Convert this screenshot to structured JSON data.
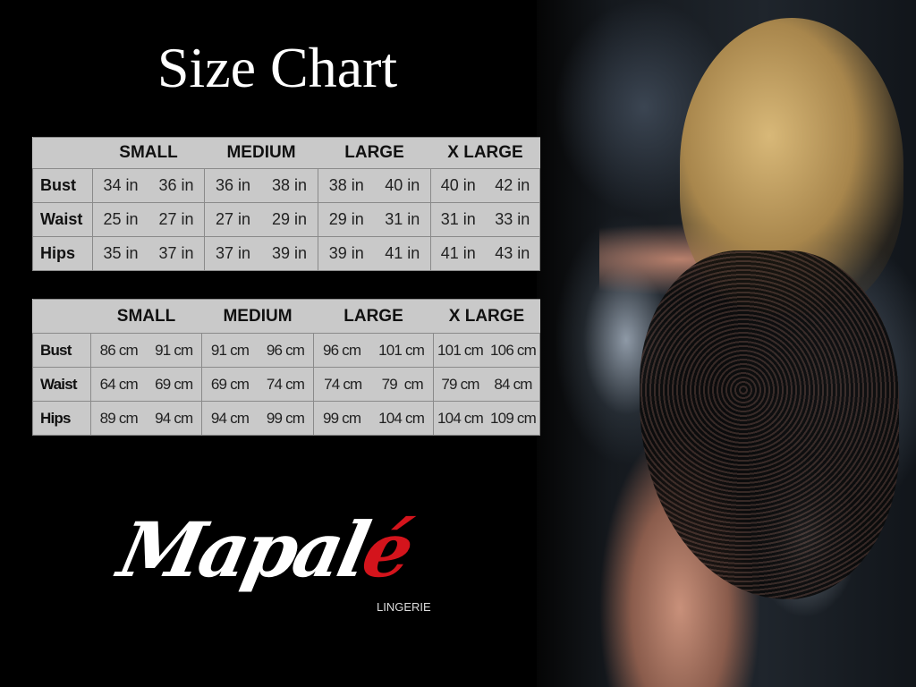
{
  "title": "Size Chart",
  "sizes": [
    "SMALL",
    "MEDIUM",
    "LARGE",
    "X LARGE"
  ],
  "inches_table": {
    "rows": [
      {
        "label": "Bust",
        "values": [
          [
            "34 in",
            "36 in"
          ],
          [
            "36 in",
            "38 in"
          ],
          [
            "38 in",
            "40 in"
          ],
          [
            "40 in",
            "42 in"
          ]
        ]
      },
      {
        "label": "Waist",
        "values": [
          [
            "25 in",
            "27 in"
          ],
          [
            "27 in",
            "29 in"
          ],
          [
            "29 in",
            "31 in"
          ],
          [
            "31 in",
            "33 in"
          ]
        ]
      },
      {
        "label": "Hips",
        "values": [
          [
            "35 in",
            "37 in"
          ],
          [
            "37 in",
            "39 in"
          ],
          [
            "39 in",
            "41 in"
          ],
          [
            "41 in",
            "43 in"
          ]
        ]
      }
    ]
  },
  "cm_table": {
    "rows": [
      {
        "label": "Bust",
        "values": [
          [
            "86 cm",
            "91 cm"
          ],
          [
            "91 cm",
            "96 cm"
          ],
          [
            "96 cm",
            "101 cm"
          ],
          [
            "101 cm",
            "106 cm"
          ]
        ]
      },
      {
        "label": "Waist",
        "values": [
          [
            "64 cm",
            "69 cm"
          ],
          [
            "69 cm",
            "74 cm"
          ],
          [
            "74 cm",
            "79  cm"
          ],
          [
            "79 cm",
            "84 cm"
          ]
        ]
      },
      {
        "label": "Hips",
        "values": [
          [
            "89 cm",
            "94 cm"
          ],
          [
            "94 cm",
            "99 cm"
          ],
          [
            "99 cm",
            "104 cm"
          ],
          [
            "104 cm",
            "109 cm"
          ]
        ]
      }
    ]
  },
  "logo": {
    "main": "Mapal",
    "accent": "é",
    "sub": "LINGERIE",
    "accent_color": "#d4141c"
  }
}
